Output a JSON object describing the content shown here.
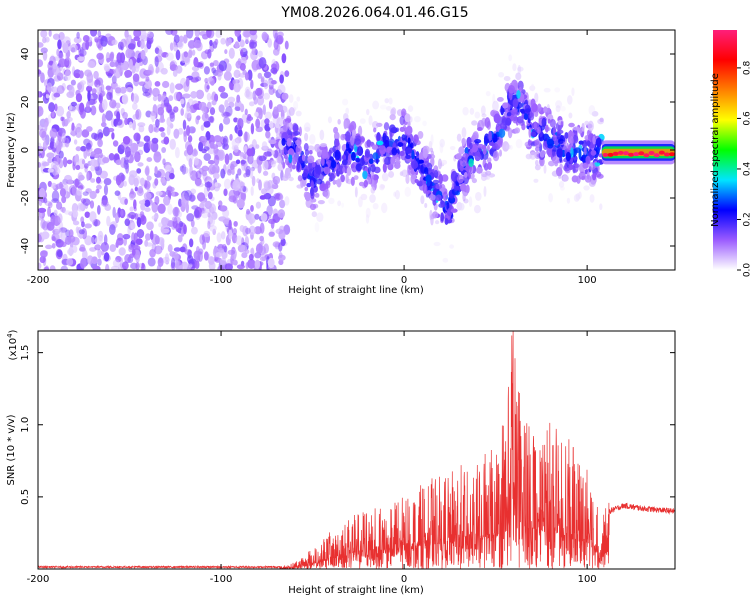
{
  "title": "YM08.2026.064.01.46.G15",
  "chart_data": [
    {
      "type": "heatmap",
      "xlabel": "Height of straight line (km)",
      "ylabel": "Frequency (Hz)",
      "xlim": [
        -200,
        148
      ],
      "ylim": [
        -50,
        50
      ],
      "xticks": [
        -200,
        -100,
        0,
        100
      ],
      "yticks": [
        -40,
        -20,
        0,
        20,
        40
      ],
      "colorbar": {
        "label": "Normalized spectral amplitude",
        "range": [
          0,
          0.95
        ],
        "ticks": [
          0.0,
          0.2,
          0.4,
          0.6,
          0.8
        ],
        "colors": [
          "#ffffff",
          "#9b5cff",
          "#0000ff",
          "#00e5ff",
          "#00ff00",
          "#ffff00",
          "#ff7f00",
          "#ff0000",
          "#ff1f7a"
        ]
      },
      "regions": [
        {
          "x": [
            -200,
            -64
          ],
          "y": [
            -50,
            50
          ],
          "amplitude": 0.1,
          "note_density": "high"
        },
        {
          "x": [
            -64,
            108
          ],
          "y": [
            -50,
            40
          ],
          "amplitude": 0.15
        },
        {
          "x": [
            108,
            148
          ],
          "y": [
            -6,
            4
          ],
          "amplitude": 0.8
        }
      ],
      "ridge": {
        "x": [
          -70,
          -60,
          -50,
          -40,
          -30,
          -20,
          -10,
          0,
          10,
          20,
          25,
          30,
          40,
          50,
          55,
          60,
          65,
          70,
          80,
          90,
          100,
          108,
          115,
          125,
          135,
          148
        ],
        "y": [
          0,
          2,
          -12,
          -5,
          0,
          -6,
          2,
          4,
          -8,
          -20,
          -25,
          -10,
          0,
          5,
          15,
          20,
          18,
          10,
          3,
          0,
          -2,
          0,
          -3,
          -2,
          -1,
          0
        ]
      }
    },
    {
      "type": "line",
      "xlabel": "Height of straight line (km)",
      "ylabel": "SNR (10 * v/v)",
      "ymultiplier": "(x10",
      "ymultiplier_exp": "4",
      "ymultiplier_close": ")",
      "xlim": [
        -200,
        148
      ],
      "ylim": [
        0,
        1.65
      ],
      "xticks": [
        -200,
        -100,
        0,
        100
      ],
      "yticks": [
        0.5,
        1.0,
        1.5
      ],
      "ytick_labels": [
        "0.5",
        "1.0",
        "1.5"
      ],
      "color": "#e83030",
      "envelope": {
        "x": [
          -200,
          -70,
          -60,
          -50,
          -40,
          -30,
          -20,
          -10,
          0,
          10,
          20,
          30,
          40,
          50,
          55,
          60,
          65,
          70,
          80,
          90,
          100,
          108,
          112,
          120,
          130,
          148
        ],
        "y": [
          0.01,
          0.01,
          0.04,
          0.12,
          0.22,
          0.3,
          0.35,
          0.38,
          0.42,
          0.5,
          0.56,
          0.6,
          0.66,
          0.7,
          0.95,
          1.65,
          1.0,
          0.9,
          0.85,
          0.75,
          0.6,
          0.3,
          0.4,
          0.44,
          0.42,
          0.4
        ]
      }
    }
  ]
}
